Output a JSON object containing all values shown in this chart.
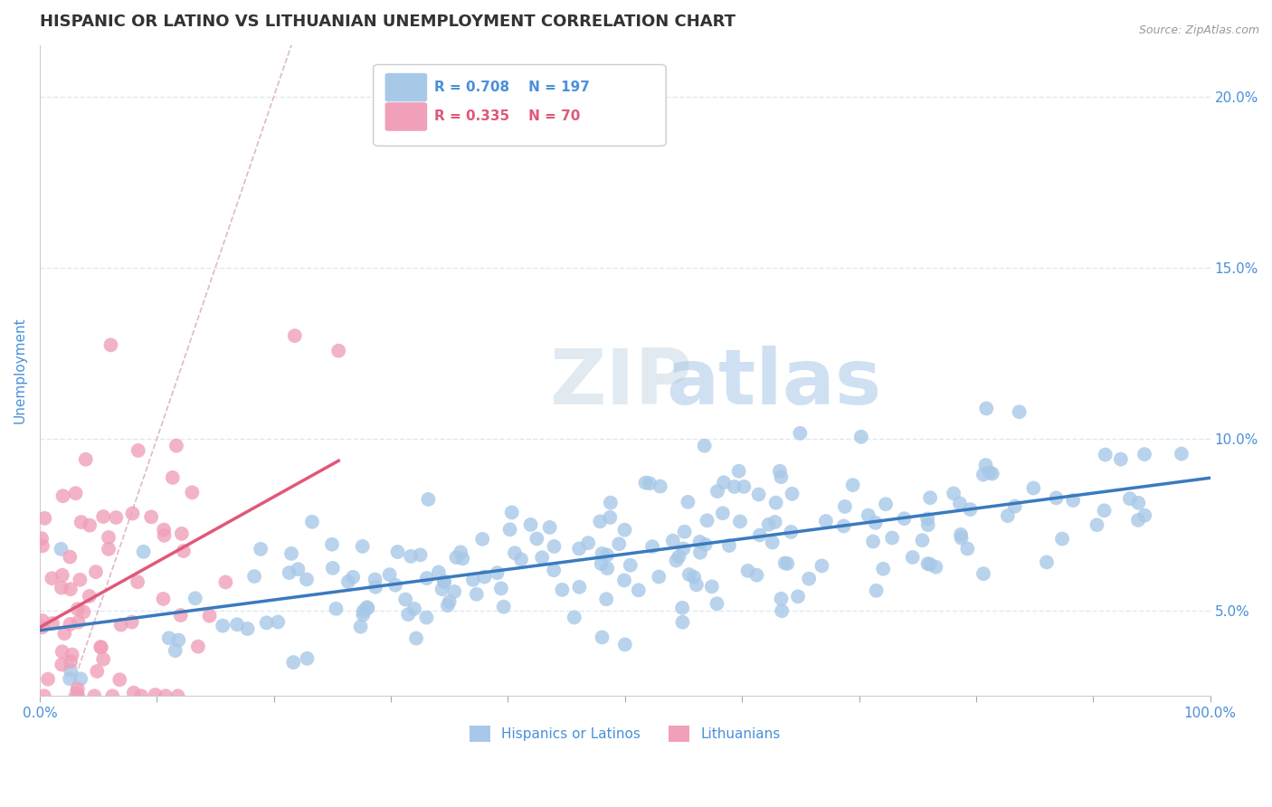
{
  "title": "HISPANIC OR LATINO VS LITHUANIAN UNEMPLOYMENT CORRELATION CHART",
  "source_text": "Source: ZipAtlas.com",
  "ylabel": "Unemployment",
  "xlim": [
    0.0,
    1.0
  ],
  "ylim": [
    0.025,
    0.215
  ],
  "yticks": [
    0.05,
    0.1,
    0.15,
    0.2
  ],
  "ytick_labels": [
    "5.0%",
    "10.0%",
    "15.0%",
    "20.0%"
  ],
  "blue_color": "#a8c8e8",
  "blue_line_color": "#3a7abf",
  "pink_color": "#f0a0b8",
  "pink_line_color": "#e05878",
  "diagonal_color": "#e0b8c8",
  "grid_color": "#ddeaf5",
  "background_color": "#ffffff",
  "text_color": "#4a90d9",
  "pink_text_color": "#e05878",
  "R_blue": 0.708,
  "N_blue": 197,
  "R_pink": 0.335,
  "N_pink": 70,
  "legend_label_blue": "Hispanics or Latinos",
  "legend_label_pink": "Lithuanians",
  "watermark_zip": "ZIP",
  "watermark_atlas": "atlas",
  "title_fontsize": 13,
  "axis_label_fontsize": 11,
  "tick_fontsize": 11,
  "seed_blue": 42,
  "seed_pink": 7
}
